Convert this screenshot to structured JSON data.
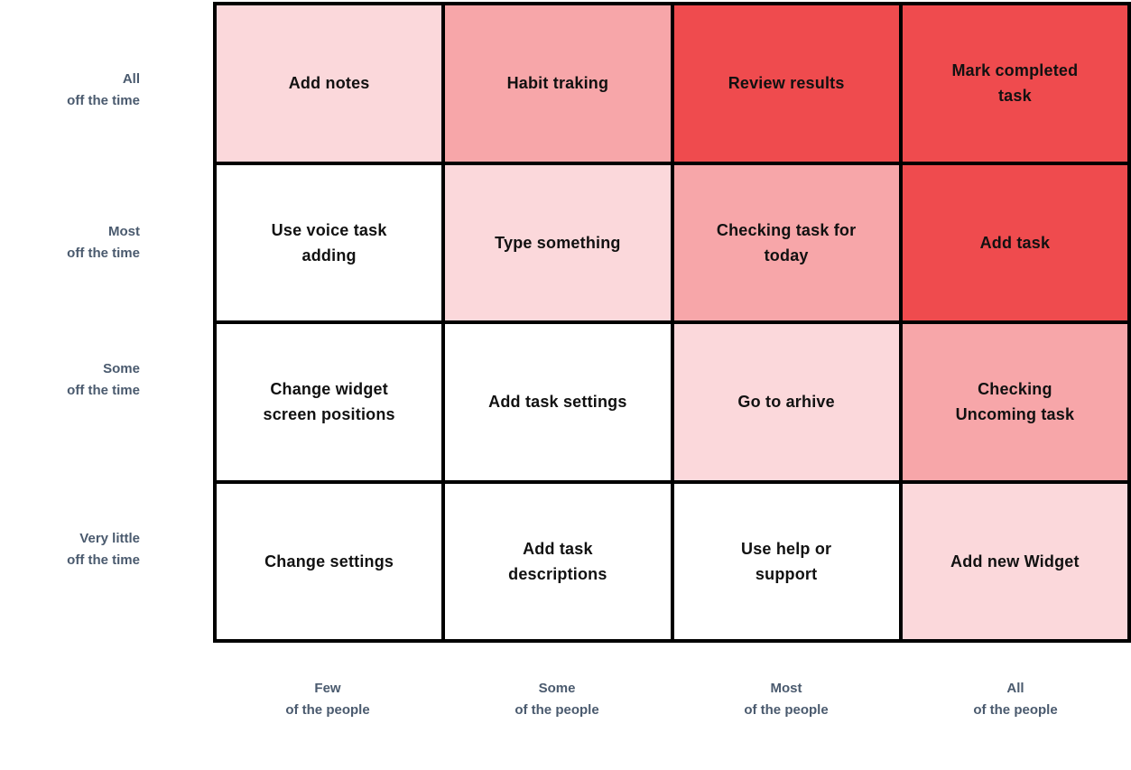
{
  "chart_data": {
    "type": "heatmap",
    "title": "",
    "x_axis": {
      "categories": [
        "Few\nof the people",
        "Some\nof the people",
        "Most\nof the people",
        "All\nof the people"
      ]
    },
    "y_axis": {
      "categories": [
        "All\noff the time",
        "Most\noff the time",
        "Some\noff the time",
        "Very little\noff the time"
      ]
    },
    "level_colors": {
      "0": "#ffffff",
      "1": "#fbd8db",
      "2": "#f7a6a9",
      "3": "#ef4b4e"
    },
    "cells": [
      {
        "row": 0,
        "col": 0,
        "label": "Add notes",
        "level": 1
      },
      {
        "row": 0,
        "col": 1,
        "label": "Habit traking",
        "level": 2
      },
      {
        "row": 0,
        "col": 2,
        "label": "Review results",
        "level": 3
      },
      {
        "row": 0,
        "col": 3,
        "label": "Mark completed\ntask",
        "level": 3
      },
      {
        "row": 1,
        "col": 0,
        "label": "Use voice task\nadding",
        "level": 0
      },
      {
        "row": 1,
        "col": 1,
        "label": "Type something",
        "level": 1
      },
      {
        "row": 1,
        "col": 2,
        "label": "Checking task for\ntoday",
        "level": 2
      },
      {
        "row": 1,
        "col": 3,
        "label": "Add task",
        "level": 3
      },
      {
        "row": 2,
        "col": 0,
        "label": "Change widget\nscreen positions",
        "level": 0
      },
      {
        "row": 2,
        "col": 1,
        "label": "Add task settings",
        "level": 0
      },
      {
        "row": 2,
        "col": 2,
        "label": "Go to arhive",
        "level": 1
      },
      {
        "row": 2,
        "col": 3,
        "label": "Checking\nUncoming task",
        "level": 2
      },
      {
        "row": 3,
        "col": 0,
        "label": "Change settings",
        "level": 0
      },
      {
        "row": 3,
        "col": 1,
        "label": "Add task\ndescriptions",
        "level": 0
      },
      {
        "row": 3,
        "col": 2,
        "label": "Use help or\nsupport",
        "level": 0
      },
      {
        "row": 3,
        "col": 3,
        "label": "Add new Widget",
        "level": 1
      }
    ]
  },
  "colors": {
    "grid_border": "#000000",
    "axis_label_text": "#4a5a6e",
    "cell_text": "#111111"
  }
}
